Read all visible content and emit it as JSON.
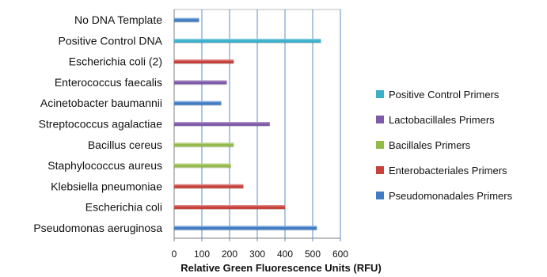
{
  "chart_data": {
    "type": "bar",
    "orientation": "horizontal",
    "title": "",
    "xlabel": "Relative Green Fluorescence Units (RFU)",
    "ylabel": "",
    "xlim": [
      0,
      600
    ],
    "x_ticks": [
      0,
      100,
      200,
      300,
      400,
      500,
      600
    ],
    "grid": "vertical",
    "legend_position": "right",
    "categories": [
      "Pseudomonas aeruginosa",
      "Escherichia coli",
      "Klebsiella pneumoniae",
      "Staphylococcus aureus",
      "Bacillus cereus",
      "Streptococcus agalactiae",
      "Acinetobacter baumannii",
      "Enterococcus faecalis",
      "Escherichia coli (2)",
      "Positive Control DNA",
      "No DNA Template"
    ],
    "series": [
      {
        "name": "Pseudomonadales Primers",
        "color": "#3F7CC4",
        "values": [
          515,
          null,
          null,
          null,
          null,
          null,
          170,
          null,
          null,
          null,
          90
        ]
      },
      {
        "name": "Enterobacteriales Primers",
        "color": "#C8413B",
        "values": [
          null,
          400,
          250,
          null,
          null,
          null,
          null,
          null,
          215,
          null,
          null
        ]
      },
      {
        "name": "Bacillales Primers",
        "color": "#94BA4A",
        "values": [
          null,
          null,
          null,
          205,
          215,
          null,
          null,
          null,
          null,
          null,
          null
        ]
      },
      {
        "name": "Lactobacillales Primers",
        "color": "#7F5AA8",
        "values": [
          null,
          null,
          null,
          null,
          null,
          345,
          null,
          190,
          null,
          null,
          null
        ]
      },
      {
        "name": "Positive Control Primers",
        "color": "#3CAFCB",
        "values": [
          null,
          null,
          null,
          null,
          null,
          null,
          null,
          null,
          null,
          530,
          null
        ]
      }
    ],
    "legend_order": [
      "Positive Control Primers",
      "Lactobacillales Primers",
      "Bacillales Primers",
      "Enterobacteriales Primers",
      "Pseudomonadales Primers"
    ]
  }
}
